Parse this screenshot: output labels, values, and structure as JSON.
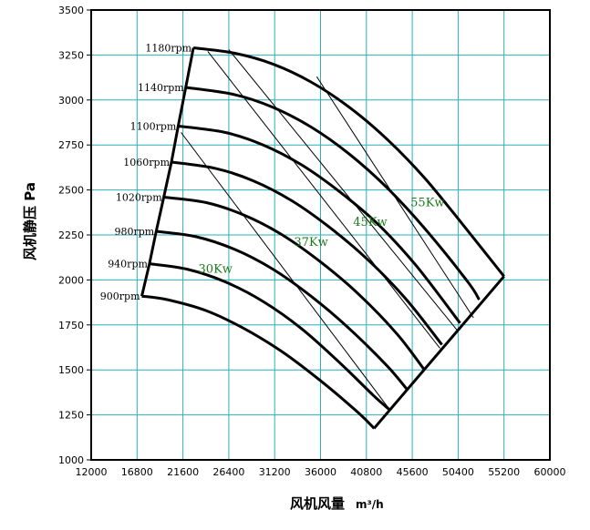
{
  "chart_data": {
    "type": "line",
    "xlabel": "风机风量",
    "xunit": "m³/h",
    "ylabel": "风机静压 Pa",
    "xlim": [
      12000,
      60000
    ],
    "ylim": [
      1000,
      3500
    ],
    "xticks": [
      12000,
      16800,
      21600,
      26400,
      31200,
      36000,
      40800,
      45600,
      50400,
      55200,
      60000
    ],
    "yticks": [
      1000,
      1250,
      1500,
      1750,
      2000,
      2250,
      2500,
      2750,
      3000,
      3250,
      3500
    ],
    "grid": true,
    "grid_color": "#2ab0b8",
    "series": [
      {
        "name": "900rpm",
        "points": [
          [
            17300,
            1910
          ],
          [
            20000,
            1890
          ],
          [
            24000,
            1830
          ],
          [
            28000,
            1730
          ],
          [
            32000,
            1600
          ],
          [
            36000,
            1440
          ],
          [
            40000,
            1260
          ],
          [
            41600,
            1175
          ]
        ]
      },
      {
        "name": "940rpm",
        "points": [
          [
            18100,
            2090
          ],
          [
            22000,
            2060
          ],
          [
            26000,
            1990
          ],
          [
            30000,
            1880
          ],
          [
            34000,
            1730
          ],
          [
            38000,
            1540
          ],
          [
            41500,
            1360
          ],
          [
            43300,
            1275
          ]
        ]
      },
      {
        "name": "980rpm",
        "points": [
          [
            18800,
            2270
          ],
          [
            23000,
            2240
          ],
          [
            27000,
            2170
          ],
          [
            31000,
            2060
          ],
          [
            35000,
            1910
          ],
          [
            39000,
            1730
          ],
          [
            43000,
            1520
          ],
          [
            45000,
            1395
          ]
        ]
      },
      {
        "name": "1020rpm",
        "points": [
          [
            19600,
            2460
          ],
          [
            24000,
            2430
          ],
          [
            28000,
            2360
          ],
          [
            32000,
            2250
          ],
          [
            36000,
            2100
          ],
          [
            40000,
            1920
          ],
          [
            44000,
            1700
          ],
          [
            46800,
            1505
          ]
        ]
      },
      {
        "name": "1060rpm",
        "points": [
          [
            20400,
            2655
          ],
          [
            25000,
            2620
          ],
          [
            29000,
            2550
          ],
          [
            33000,
            2440
          ],
          [
            37000,
            2290
          ],
          [
            41000,
            2110
          ],
          [
            45000,
            1890
          ],
          [
            48700,
            1640
          ]
        ]
      },
      {
        "name": "1100rpm",
        "points": [
          [
            21100,
            2855
          ],
          [
            26000,
            2820
          ],
          [
            30000,
            2750
          ],
          [
            34000,
            2640
          ],
          [
            38000,
            2490
          ],
          [
            42000,
            2310
          ],
          [
            46000,
            2080
          ],
          [
            50600,
            1760
          ]
        ]
      },
      {
        "name": "1140rpm",
        "points": [
          [
            21900,
            3070
          ],
          [
            27000,
            3030
          ],
          [
            31000,
            2960
          ],
          [
            35000,
            2850
          ],
          [
            39000,
            2700
          ],
          [
            43000,
            2510
          ],
          [
            47000,
            2280
          ],
          [
            51400,
            1990
          ],
          [
            52600,
            1890
          ]
        ]
      },
      {
        "name": "1180rpm",
        "points": [
          [
            22700,
            3290
          ],
          [
            27000,
            3260
          ],
          [
            31000,
            3200
          ],
          [
            35000,
            3100
          ],
          [
            39000,
            2960
          ],
          [
            43000,
            2780
          ],
          [
            47000,
            2560
          ],
          [
            51000,
            2300
          ],
          [
            55200,
            2020
          ]
        ]
      }
    ],
    "boundary": [
      [
        17300,
        1910
      ],
      [
        18100,
        2090
      ],
      [
        18800,
        2270
      ],
      [
        19600,
        2460
      ],
      [
        20400,
        2655
      ],
      [
        21100,
        2855
      ],
      [
        21900,
        3070
      ],
      [
        22700,
        3290
      ]
    ],
    "right_boundary": [
      [
        41600,
        1175
      ],
      [
        55200,
        2020
      ]
    ],
    "power_lines": [
      {
        "label": "30Kw",
        "label_pos": [
          25000,
          2040
        ],
        "from": [
          21400,
          2820
        ],
        "to": [
          43300,
          1275
        ]
      },
      {
        "label": "37Kw",
        "label_pos": [
          35000,
          2190
        ],
        "from": [
          24200,
          3270
        ],
        "to": [
          48500,
          1620
        ]
      },
      {
        "label": "45Kw",
        "label_pos": [
          41200,
          2300
        ],
        "from": [
          26400,
          3280
        ],
        "to": [
          50300,
          1720
        ]
      },
      {
        "label": "55Kw",
        "label_pos": [
          47200,
          2410
        ],
        "from": [
          35600,
          3130
        ],
        "to": [
          52000,
          1790
        ]
      }
    ]
  }
}
